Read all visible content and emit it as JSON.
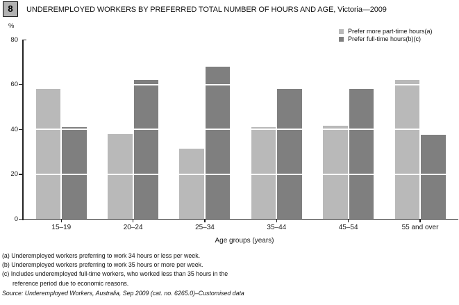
{
  "header": {
    "figure_number": "8",
    "title": "UNDEREMPLOYED WORKERS BY PREFERRED TOTAL NUMBER OF HOURS AND AGE, Victoria—2009"
  },
  "chart_data": {
    "type": "bar",
    "title": "UNDEREMPLOYED WORKERS BY PREFERRED TOTAL NUMBER OF HOURS AND AGE, Victoria—2009",
    "categories": [
      "15–19",
      "20–24",
      "25–34",
      "35–44",
      "45–54",
      "55 and over"
    ],
    "series": [
      {
        "name": "Prefer more part-time hours(a)",
        "color": "#b9b9b9",
        "values": [
          58,
          38,
          31.5,
          41,
          41.5,
          62
        ]
      },
      {
        "name": "Prefer full-time hours(b)(c)",
        "color": "#7f7f7f",
        "values": [
          41,
          62,
          68,
          58,
          58,
          37.5
        ]
      }
    ],
    "xlabel": "Age groups (years)",
    "ylabel": "",
    "y_unit": "%",
    "yticks": [
      0,
      20,
      40,
      60,
      80
    ],
    "ylim": [
      0,
      80
    ],
    "legend_position": "top-right",
    "grid": "white-overlay-horizontal",
    "axis_color": "#222222",
    "gridline_color": "#ffffff"
  },
  "footnotes": {
    "lines": [
      "(a) Underemployed workers preferring to work 34 hours or less per week.",
      "(b) Underemployed workers preferring to work 35 hours or more per week.",
      "(c) Includes underemployed full-time workers, who worked less than 35 hours in the",
      "reference period due to economic reasons."
    ],
    "source": "Source: Underemployed Workers, Australia, Sep 2009 (cat. no. 6265.0)–Customised data"
  }
}
